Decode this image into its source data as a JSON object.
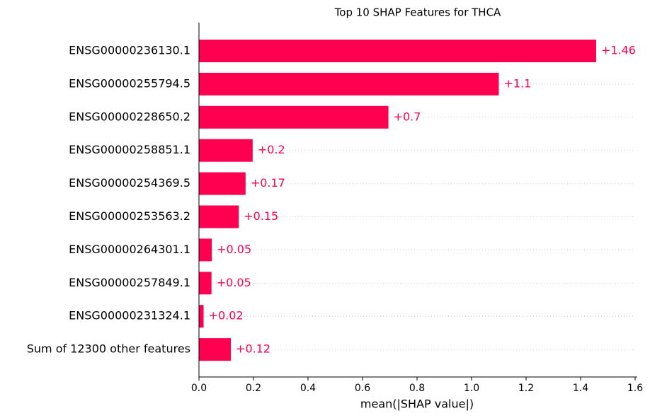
{
  "chart_data": {
    "type": "barh",
    "title": "Top 10 SHAP Features for THCA",
    "xlabel": "mean(|SHAP value|)",
    "categories": [
      "ENSG00000236130.1",
      "ENSG00000255794.5",
      "ENSG00000228650.2",
      "ENSG00000258851.1",
      "ENSG00000254369.5",
      "ENSG00000253563.2",
      "ENSG00000264301.1",
      "ENSG00000257849.1",
      "ENSG00000231324.1",
      "Sum of 12300 other features"
    ],
    "values": [
      1.457,
      1.1,
      0.695,
      0.197,
      0.171,
      0.146,
      0.047,
      0.046,
      0.017,
      0.117
    ],
    "value_labels": [
      "+1.46",
      "+1.1",
      "+0.7",
      "+0.2",
      "+0.17",
      "+0.15",
      "+0.05",
      "+0.05",
      "+0.02",
      "+0.12"
    ],
    "color": "#ff0051",
    "xlim": [
      0,
      1.6
    ],
    "xticks": [
      {
        "value": 0,
        "label": "0.0"
      },
      {
        "value": 0.2,
        "label": "0.2"
      },
      {
        "value": 0.4,
        "label": "0.4"
      },
      {
        "value": 0.6,
        "label": "0.6"
      },
      {
        "value": 0.8,
        "label": "0.8"
      },
      {
        "value": 1,
        "label": "1.0"
      },
      {
        "value": 1.2,
        "label": "1.2"
      },
      {
        "value": 1.4,
        "label": "1.4"
      },
      {
        "value": 1.6,
        "label": "1.6"
      }
    ]
  }
}
